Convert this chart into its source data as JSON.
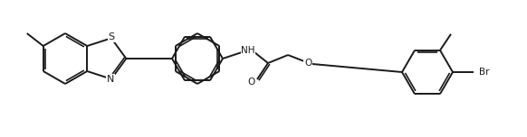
{
  "bg_color": "#ffffff",
  "line_color": "#1a1a1a",
  "line_width": 1.4,
  "font_size": 7.5,
  "figsize": [
    5.82,
    1.52
  ],
  "dpi": 100,
  "xlim": [
    0,
    5.82
  ],
  "ylim": [
    0,
    1.52
  ]
}
